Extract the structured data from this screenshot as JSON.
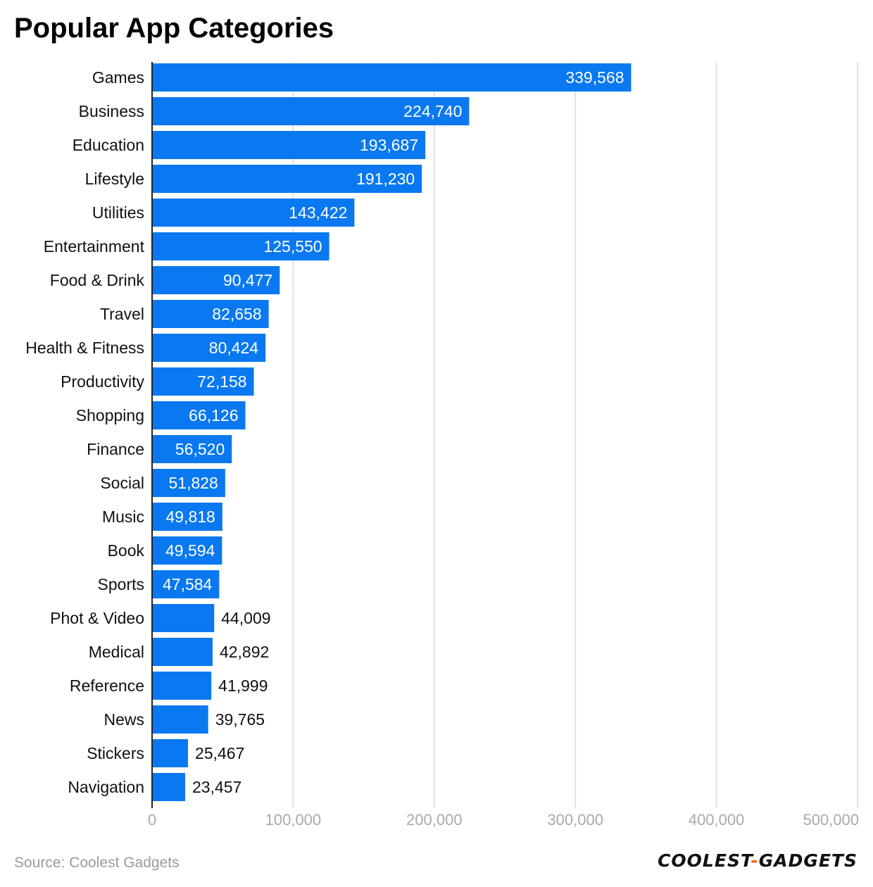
{
  "title": "Popular App Categories",
  "source": "Source: Coolest Gadgets",
  "brand": {
    "left": "COOLEST",
    "separator": "-",
    "right": "GADGETS"
  },
  "colors": {
    "bar": "#0a78f0",
    "grid": "#e3e3e3",
    "axis_line": "#222222",
    "tick_label": "#aaaaaa",
    "category_label": "#111111",
    "value_inside": "#ffffff",
    "value_outside": "#111111",
    "logo_accent": "#f26522"
  },
  "chart_data": {
    "type": "bar",
    "orientation": "horizontal",
    "title": "Popular App Categories",
    "xlabel": "",
    "ylabel": "",
    "xlim": [
      0,
      500000
    ],
    "ticks": [
      0,
      100000,
      200000,
      300000,
      400000,
      500000
    ],
    "tick_labels": [
      "0",
      "100,000",
      "200,000",
      "300,000",
      "400,000",
      "500,000"
    ],
    "grid": true,
    "categories": [
      "Games",
      "Business",
      "Education",
      "Lifestyle",
      "Utilities",
      "Entertainment",
      "Food & Drink",
      "Travel",
      "Health & Fitness",
      "Productivity",
      "Shopping",
      "Finance",
      "Social",
      "Music",
      "Book",
      "Sports",
      "Phot & Video",
      "Medical",
      "Reference",
      "News",
      "Stickers",
      "Navigation"
    ],
    "values": [
      339568,
      224740,
      193687,
      191230,
      143422,
      125550,
      90477,
      82658,
      80424,
      72158,
      66126,
      56520,
      51828,
      49818,
      49594,
      47584,
      44009,
      42892,
      41999,
      39765,
      25467,
      23457
    ],
    "value_labels": [
      "339,568",
      "224,740",
      "193,687",
      "191,230",
      "143,422",
      "125,550",
      "90,477",
      "82,658",
      "80,424",
      "72,158",
      "66,126",
      "56,520",
      "51,828",
      "49,818",
      "49,594",
      "47,584",
      "44,009",
      "42,892",
      "41,999",
      "39,765",
      "25,467",
      "23,457"
    ]
  }
}
